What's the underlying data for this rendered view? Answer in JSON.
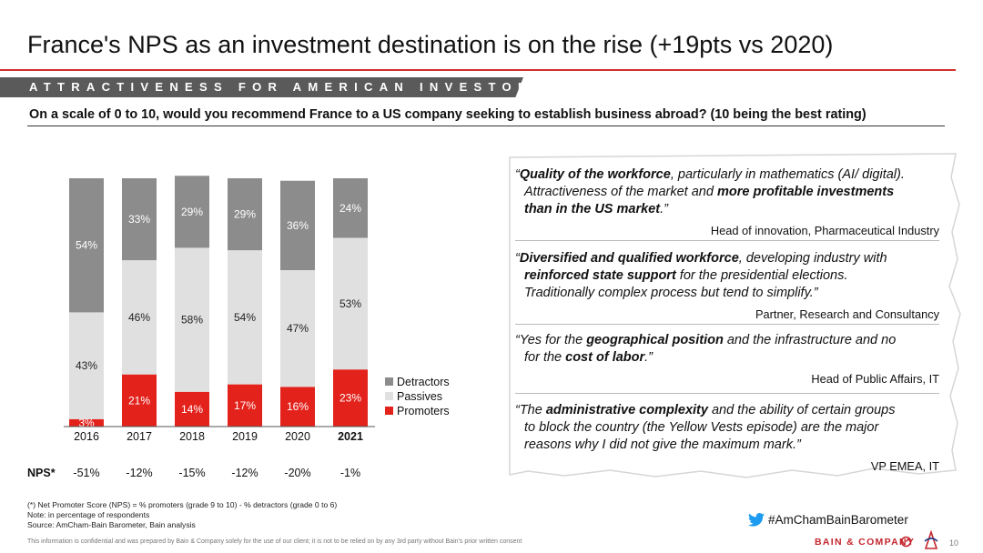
{
  "title": "France's NPS as an investment destination is on the rise (+19pts vs 2020)",
  "banner": "ATTRACTIVENESS FOR AMERICAN INVESTORS",
  "question": "On a scale of 0 to 10, would you recommend France to a US company seeking to establish business abroad? (10 being the best rating)",
  "colors": {
    "detractors": "#8c8c8c",
    "passives": "#e0e0e0",
    "promoters": "#e3221c",
    "accent": "#d0322e"
  },
  "chart_data": {
    "type": "bar",
    "stacked": true,
    "categories": [
      "2016",
      "2017",
      "2018",
      "2019",
      "2020",
      "2021"
    ],
    "highlight_category": "2021",
    "series": [
      {
        "name": "Promoters",
        "values": [
          3,
          21,
          14,
          17,
          16,
          23
        ],
        "labels": [
          "3%",
          "21%",
          "14%",
          "17%",
          "16%",
          "23%"
        ]
      },
      {
        "name": "Passives",
        "values": [
          43,
          46,
          58,
          54,
          47,
          53
        ],
        "labels": [
          "43%",
          "46%",
          "58%",
          "54%",
          "47%",
          "53%"
        ]
      },
      {
        "name": "Detractors",
        "values": [
          54,
          33,
          29,
          29,
          36,
          24
        ],
        "labels": [
          "54%",
          "33%",
          "29%",
          "29%",
          "36%",
          "24%"
        ]
      }
    ],
    "legend": [
      "Detractors",
      "Passives",
      "Promoters"
    ],
    "legend_position": "right",
    "ylim": [
      0,
      100
    ],
    "grid": false,
    "nps_label": "NPS*",
    "nps_values": [
      "-51%",
      "-12%",
      "-15%",
      "-12%",
      "-20%",
      "-1%"
    ]
  },
  "quotes": [
    {
      "lines": [
        [
          {
            "t": "“"
          },
          {
            "t": "Quality of the workforce",
            "b": true
          },
          {
            "t": ", particularly in mathematics (AI/ digital)."
          }
        ],
        [
          {
            "t": "Attractiveness of the market and "
          },
          {
            "t": "more profitable investments",
            "b": true
          }
        ],
        [
          {
            "t": "than in the US market",
            "b": true
          },
          {
            "t": ".”"
          }
        ]
      ],
      "attribution": "Head of innovation, Pharmaceutical Industry"
    },
    {
      "lines": [
        [
          {
            "t": "“"
          },
          {
            "t": "Diversified and qualified workforce",
            "b": true
          },
          {
            "t": ", developing industry with"
          }
        ],
        [
          {
            "t": "reinforced state support",
            "b": true
          },
          {
            "t": " for the presidential elections."
          }
        ],
        [
          {
            "t": "Traditionally complex process but tend to simplify.”"
          }
        ]
      ],
      "attribution": "Partner, Research and Consultancy"
    },
    {
      "lines": [
        [
          {
            "t": "“Yes for the "
          },
          {
            "t": "geographical position",
            "b": true
          },
          {
            "t": " and the infrastructure and no"
          }
        ],
        [
          {
            "t": "for the "
          },
          {
            "t": "cost of labor",
            "b": true
          },
          {
            "t": ".”"
          }
        ]
      ],
      "attribution": "Head of Public Affairs, IT"
    },
    {
      "lines": [
        [
          {
            "t": "“The "
          },
          {
            "t": "administrative complexity",
            "b": true
          },
          {
            "t": " and the ability of certain groups"
          }
        ],
        [
          {
            "t": "to block the country (the Yellow Vests episode) are the major"
          }
        ],
        [
          {
            "t": "reasons why I did not give the maximum mark.”"
          }
        ]
      ],
      "attribution": "VP EMEA, IT"
    }
  ],
  "footnotes": [
    "(*) Net Promoter Score (NPS) = % promoters (grade 9 to 10) - % detractors (grade 0 to 6)",
    "Note: in percentage of respondents",
    "Source: AmCham-Bain Barometer, Bain analysis"
  ],
  "hashtag": "#AmChamBainBarometer",
  "confidential": "This information is confidential and was prepared by Bain & Company solely for the use of our client; it is not to be relied on by any 3rd party without Bain's prior written consent",
  "brand": "BAIN & COMPANY",
  "page_number": "10",
  "icons": {
    "social": "twitter-bird-icon",
    "brand": "bain-circle-icon",
    "logo": "amcham-logo-icon"
  }
}
